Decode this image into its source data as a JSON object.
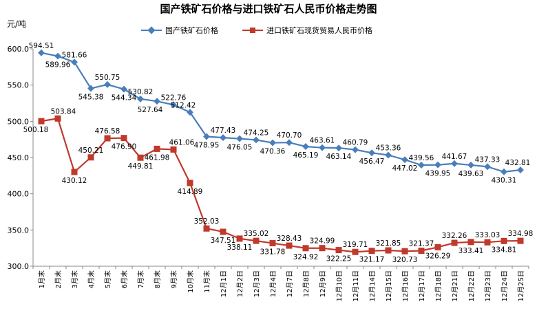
{
  "chart_data": {
    "type": "line",
    "title": "国产铁矿石价格与进口铁矿石人民币价格走势图",
    "ylabel": "元/吨",
    "xlabel": "",
    "ylim": [
      300,
      600
    ],
    "yticks": [
      "300.0",
      "350.0",
      "400.0",
      "450.0",
      "500.0",
      "550.0",
      "600.0"
    ],
    "grid": false,
    "legend_position": "top",
    "categories": [
      "1月末",
      "2月末",
      "3月末",
      "4月末",
      "5月末",
      "6月末",
      "7月末",
      "8月末",
      "9月末",
      "10月末",
      "11月末",
      "12月1日",
      "12月2日",
      "12月3日",
      "12月4日",
      "12月7日",
      "12月8日",
      "12月9日",
      "12月10日",
      "12月11日",
      "12月14日",
      "12月15日",
      "12月16日",
      "12月17日",
      "12月18日",
      "12月21日",
      "12月22日",
      "12月23日",
      "12月24日",
      "12月25日"
    ],
    "series": [
      {
        "name": "国产铁矿石价格",
        "color": "#4a7ebb",
        "marker": "diamond",
        "values": [
          594.51,
          589.96,
          581.66,
          545.38,
          550.75,
          544.34,
          530.82,
          527.64,
          522.76,
          512.42,
          478.95,
          477.43,
          476.05,
          474.25,
          470.36,
          470.7,
          465.19,
          463.61,
          463.14,
          460.79,
          456.47,
          453.36,
          447.02,
          439.56,
          439.95,
          441.67,
          439.63,
          437.33,
          430.31,
          432.81
        ],
        "labels": [
          "594.51",
          "589.96",
          "581.66",
          "545.38",
          "550.75",
          "544.34",
          "530.82",
          "527.64",
          "522.76",
          "512.42",
          "478.95",
          "477.43",
          "476.05",
          "474.25",
          "470.36",
          "470.70",
          "465.19",
          "463.61",
          "463.14",
          "460.79",
          "456.47",
          "453.36",
          "447.02",
          "439.56",
          "439.95",
          "441.67",
          "439.63",
          "437.33",
          "430.31",
          "432.81"
        ]
      },
      {
        "name": "进口铁矿石现货贸易人民币价格",
        "color": "#c0392b",
        "marker": "square",
        "values": [
          500.18,
          503.84,
          430.12,
          450.21,
          476.58,
          476.9,
          449.81,
          461.98,
          461.06,
          414.89,
          352.03,
          347.51,
          338.11,
          335.02,
          331.78,
          328.43,
          324.92,
          324.99,
          322.25,
          319.71,
          321.17,
          321.85,
          320.73,
          321.37,
          326.29,
          332.26,
          333.41,
          333.03,
          334.81,
          334.98
        ],
        "labels": [
          "500.18",
          "503.84",
          "430.12",
          "450.21",
          "476.58",
          "476.90",
          "449.81",
          "461.98",
          "461.06",
          "414.89",
          "352.03",
          "347.51",
          "338.11",
          "335.02",
          "331.78",
          "328.43",
          "324.92",
          "324.99",
          "322.25",
          "319.71",
          "321.17",
          "321.85",
          "320.73",
          "321.37",
          "326.29",
          "332.26",
          "333.41",
          "333.03",
          "334.81",
          "334.98"
        ]
      }
    ]
  }
}
